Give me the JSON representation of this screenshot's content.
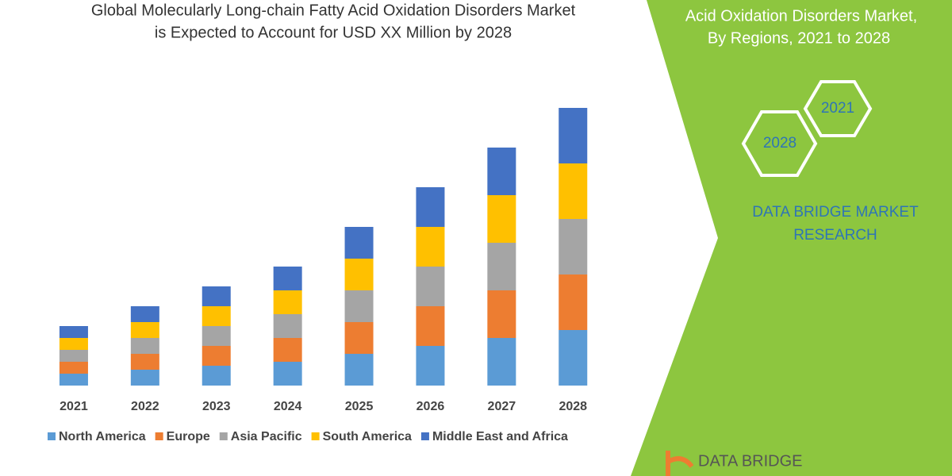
{
  "chart_data": {
    "type": "stacked-bar",
    "title": [
      "Global Molecularly Long-chain Fatty Acid Oxidation Disorders Market",
      "is Expected to Account for USD XX Million by 2028"
    ],
    "categories": [
      "2021",
      "2022",
      "2023",
      "2024",
      "2025",
      "2026",
      "2027",
      "2028"
    ],
    "series": [
      {
        "name": "North America",
        "color": "#5b9bd5",
        "values": [
          15,
          20,
          25,
          30,
          40,
          50,
          60,
          70
        ]
      },
      {
        "name": "Europe",
        "color": "#ed7d31",
        "values": [
          15,
          20,
          25,
          30,
          40,
          50,
          60,
          70
        ]
      },
      {
        "name": "Asia Pacific",
        "color": "#a5a5a5",
        "values": [
          15,
          20,
          25,
          30,
          40,
          50,
          60,
          70
        ]
      },
      {
        "name": "South America",
        "color": "#ffc000",
        "values": [
          15,
          20,
          25,
          30,
          40,
          50,
          60,
          70
        ]
      },
      {
        "name": "Middle East and Africa",
        "color": "#4472c4",
        "values": [
          15,
          20,
          25,
          30,
          40,
          50,
          60,
          70
        ]
      }
    ],
    "legend": "bottom"
  },
  "side_panel": {
    "title": [
      "Acid Oxidation Disorders Market,",
      "By Regions, 2021 to 2028"
    ],
    "hexagons": [
      "2021",
      "2028"
    ],
    "brand": [
      "DATA BRIDGE MARKET",
      "RESEARCH"
    ],
    "logo": "DATA BRIDGE"
  }
}
